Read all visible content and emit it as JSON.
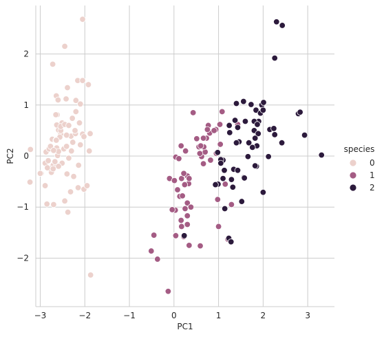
{
  "chart_data": {
    "type": "scatter",
    "title": "",
    "xlabel": "PC1",
    "ylabel": "PC2",
    "xlim": [
      -3.1,
      3.6
    ],
    "ylim": [
      -2.95,
      2.95
    ],
    "xticks": [
      -3,
      -2,
      -1,
      0,
      1,
      2,
      3
    ],
    "yticks": [
      -2,
      -1,
      0,
      1,
      2
    ],
    "grid": true,
    "legend": {
      "title": "species",
      "position": "right",
      "entries": [
        {
          "label": "0",
          "color": "#ecd1cc"
        },
        {
          "label": "1",
          "color": "#a45c84"
        },
        {
          "label": "2",
          "color": "#2c1a3c"
        }
      ]
    },
    "series": [
      {
        "name": "0",
        "color": "#ecd1cc",
        "points": [
          [
            -2.68,
            0.32
          ],
          [
            -2.71,
            -0.18
          ],
          [
            -2.89,
            -0.14
          ],
          [
            -2.75,
            -0.32
          ],
          [
            -2.73,
            0.33
          ],
          [
            -2.28,
            0.74
          ],
          [
            -2.82,
            -0.09
          ],
          [
            -2.63,
            0.16
          ],
          [
            -2.89,
            -0.58
          ],
          [
            -2.67,
            -0.11
          ],
          [
            -2.51,
            0.65
          ],
          [
            -2.61,
            0.01
          ],
          [
            -2.79,
            -0.24
          ],
          [
            -3.23,
            -0.51
          ],
          [
            -2.64,
            1.18
          ],
          [
            -2.39,
            1.34
          ],
          [
            -2.62,
            0.81
          ],
          [
            -2.65,
            0.31
          ],
          [
            -2.2,
            0.87
          ],
          [
            -2.59,
            0.51
          ],
          [
            -2.31,
            0.39
          ],
          [
            -2.54,
            0.43
          ],
          [
            -3.22,
            0.13
          ],
          [
            -2.3,
            0.1
          ],
          [
            -2.36,
            -0.04
          ],
          [
            -2.51,
            -0.14
          ],
          [
            -2.47,
            0.14
          ],
          [
            -2.56,
            0.37
          ],
          [
            -2.64,
            0.31
          ],
          [
            -2.63,
            -0.19
          ],
          [
            -2.59,
            -0.2
          ],
          [
            -2.41,
            0.41
          ],
          [
            -2.65,
            0.81
          ],
          [
            -2.6,
            1.1
          ],
          [
            -2.67,
            -0.11
          ],
          [
            -2.87,
            0.08
          ],
          [
            -2.63,
            0.61
          ],
          [
            -2.8,
            0.14
          ],
          [
            -2.98,
            -0.34
          ],
          [
            -2.59,
            0.09
          ],
          [
            -2.77,
            0.19
          ],
          [
            -2.85,
            -0.94
          ],
          [
            -3.0,
            -0.34
          ],
          [
            -2.41,
            0.19
          ],
          [
            -2.21,
            0.44
          ],
          [
            -2.71,
            -0.25
          ],
          [
            -2.54,
            0.5
          ],
          [
            -2.84,
            -0.23
          ],
          [
            -2.54,
            0.58
          ],
          [
            -2.7,
            0.11
          ],
          [
            -2.05,
            2.68
          ],
          [
            -2.45,
            2.15
          ],
          [
            -2.72,
            1.8
          ],
          [
            -2.16,
            1.48
          ],
          [
            -2.05,
            1.48
          ],
          [
            -1.92,
            1.4
          ],
          [
            -2.2,
            1.09
          ],
          [
            -2.42,
            1.12
          ],
          [
            -2.1,
            1.02
          ],
          [
            -2.45,
            0.62
          ],
          [
            -2.36,
            0.6
          ],
          [
            -2.12,
            0.65
          ],
          [
            -2.22,
            0.5
          ],
          [
            -2.05,
            0.43
          ],
          [
            -1.88,
            0.44
          ],
          [
            -2.02,
            0.38
          ],
          [
            -2.1,
            0.22
          ],
          [
            -1.9,
            0.1
          ],
          [
            -2.27,
            0.27
          ],
          [
            -2.14,
            -0.18
          ],
          [
            -2.7,
            -0.95
          ],
          [
            -2.45,
            -0.88
          ],
          [
            -2.38,
            -1.1
          ],
          [
            -2.02,
            -0.65
          ],
          [
            -1.95,
            -0.58
          ],
          [
            -2.32,
            -0.7
          ],
          [
            -1.87,
            -2.33
          ],
          [
            -2.15,
            -0.62
          ],
          [
            -2.4,
            -0.35
          ],
          [
            -2.25,
            -0.4
          ]
        ]
      },
      {
        "name": "1",
        "color": "#a45c84",
        "points": [
          [
            0.43,
            0.85
          ],
          [
            1.08,
            0.87
          ],
          [
            0.77,
            0.6
          ],
          [
            0.8,
            0.45
          ],
          [
            1.03,
            0.62
          ],
          [
            0.73,
            0.35
          ],
          [
            0.94,
            0.52
          ],
          [
            0.75,
            0.52
          ],
          [
            0.66,
            0.35
          ],
          [
            0.56,
            0.18
          ],
          [
            0.62,
            -0.01
          ],
          [
            0.7,
            0.08
          ],
          [
            0.58,
            0.05
          ],
          [
            0.67,
            0.18
          ],
          [
            0.6,
            0.2
          ],
          [
            0.04,
            -0.02
          ],
          [
            0.11,
            -0.05
          ],
          [
            0.26,
            0.1
          ],
          [
            0.51,
            0.34
          ],
          [
            0.16,
            0.2
          ],
          [
            1.43,
            0.62
          ],
          [
            0.95,
            0.05
          ],
          [
            0.17,
            -0.44
          ],
          [
            0.66,
            -0.15
          ],
          [
            0.3,
            -0.39
          ],
          [
            0.33,
            -0.54
          ],
          [
            0.24,
            -0.56
          ],
          [
            0.22,
            -0.34
          ],
          [
            0.08,
            -0.66
          ],
          [
            0.13,
            -0.79
          ],
          [
            0.34,
            -0.44
          ],
          [
            0.3,
            -0.92
          ],
          [
            0.3,
            -1.17
          ],
          [
            0.25,
            -1.03
          ],
          [
            -0.1,
            -0.44
          ],
          [
            0.01,
            -0.48
          ],
          [
            0.03,
            -1.06
          ],
          [
            0.04,
            -1.55
          ],
          [
            0.19,
            -0.78
          ],
          [
            0.16,
            -1.26
          ],
          [
            0.3,
            -1.34
          ],
          [
            0.38,
            -1.0
          ],
          [
            0.17,
            -1.38
          ],
          [
            0.22,
            -1.58
          ],
          [
            0.04,
            -1.56
          ],
          [
            -0.04,
            -1.05
          ],
          [
            0.59,
            -1.76
          ],
          [
            0.34,
            -1.75
          ],
          [
            -0.45,
            -1.55
          ],
          [
            -0.51,
            -1.86
          ],
          [
            -0.37,
            -2.02
          ],
          [
            -0.13,
            -2.65
          ],
          [
            1.0,
            -1.38
          ],
          [
            1.21,
            -1.63
          ],
          [
            0.98,
            -0.85
          ],
          [
            0.9,
            0.5
          ],
          [
            1.04,
            0.23
          ],
          [
            1.15,
            -0.55
          ],
          [
            1.29,
            -0.95
          ],
          [
            0.82,
            -0.08
          ]
        ]
      },
      {
        "name": "2",
        "color": "#2c1a3c",
        "points": [
          [
            2.3,
            2.63
          ],
          [
            2.43,
            2.56
          ],
          [
            2.26,
            1.92
          ],
          [
            1.56,
            1.07
          ],
          [
            1.4,
            1.03
          ],
          [
            1.73,
            1.01
          ],
          [
            1.97,
            1.0
          ],
          [
            2.01,
            1.05
          ],
          [
            2.0,
            0.9
          ],
          [
            1.84,
            0.9
          ],
          [
            1.94,
            0.84
          ],
          [
            2.0,
            0.9
          ],
          [
            1.9,
            0.68
          ],
          [
            1.8,
            0.68
          ],
          [
            1.87,
            0.62
          ],
          [
            1.6,
            0.68
          ],
          [
            1.37,
            0.7
          ],
          [
            1.24,
            0.6
          ],
          [
            1.43,
            0.56
          ],
          [
            1.8,
            0.5
          ],
          [
            1.89,
            0.44
          ],
          [
            1.25,
            0.46
          ],
          [
            2.15,
            0.52
          ],
          [
            2.24,
            0.54
          ],
          [
            2.79,
            0.83
          ],
          [
            2.83,
            0.86
          ],
          [
            2.93,
            0.41
          ],
          [
            2.26,
            0.42
          ],
          [
            2.42,
            0.26
          ],
          [
            1.68,
            0.26
          ],
          [
            1.46,
            0.28
          ],
          [
            1.4,
            0.26
          ],
          [
            1.82,
            0.35
          ],
          [
            1.86,
            0.2
          ],
          [
            1.76,
            0.17
          ],
          [
            1.66,
            -0.01
          ],
          [
            1.34,
            -0.26
          ],
          [
            1.13,
            -0.28
          ],
          [
            1.1,
            -0.08
          ],
          [
            1.85,
            -0.2
          ],
          [
            1.82,
            -0.19
          ],
          [
            0.98,
            0.07
          ],
          [
            1.05,
            -0.07
          ],
          [
            1.05,
            -0.14
          ],
          [
            1.57,
            -0.42
          ],
          [
            1.58,
            -0.43
          ],
          [
            1.52,
            -0.89
          ],
          [
            2.0,
            -0.71
          ],
          [
            1.29,
            -0.46
          ],
          [
            1.1,
            -0.44
          ],
          [
            1.32,
            -0.61
          ],
          [
            0.99,
            -0.55
          ],
          [
            0.93,
            -0.56
          ],
          [
            1.14,
            -1.03
          ],
          [
            1.23,
            -1.61
          ],
          [
            1.28,
            -1.68
          ],
          [
            0.23,
            -1.56
          ],
          [
            3.31,
            0.02
          ],
          [
            2.12,
            -0.01
          ],
          [
            1.43,
            -0.28
          ]
        ]
      }
    ]
  }
}
